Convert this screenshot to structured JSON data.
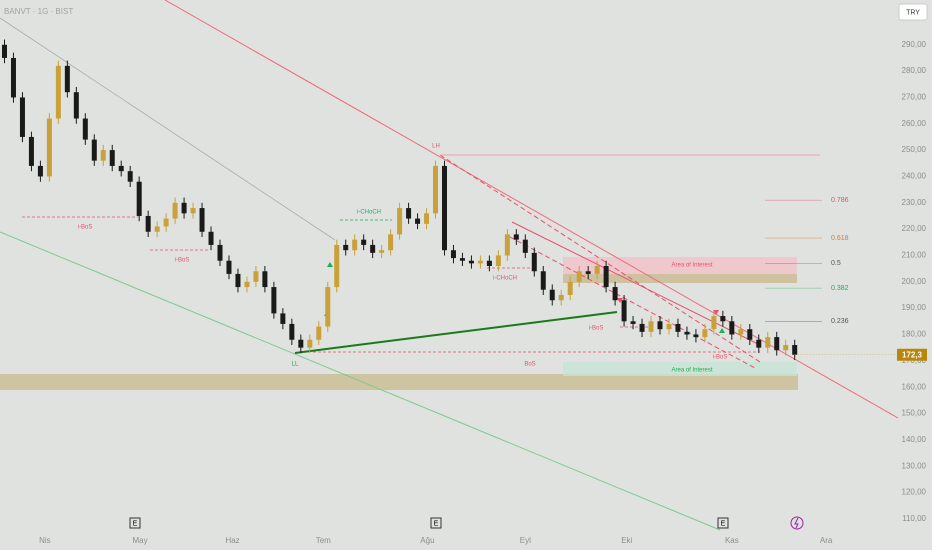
{
  "chart_data": {
    "type": "candlestick",
    "title": "BANVT · 1G · BIST",
    "currency": "TRY",
    "event_marker": "E",
    "last_price_label": "172,3",
    "up_color": "#c9a13b",
    "down_color": "#1a1a1a",
    "grid": false,
    "xlim": [
      -0.5,
      97.5
    ],
    "ylim": [
      105,
      307
    ],
    "xticks": [
      {
        "value": 4.5,
        "label": "Nis"
      },
      {
        "value": 15.1,
        "label": "May"
      },
      {
        "value": 25.4,
        "label": "Haz"
      },
      {
        "value": 35.5,
        "label": "Tem"
      },
      {
        "value": 47.1,
        "label": "Ağu"
      },
      {
        "value": 58,
        "label": "Eyl"
      },
      {
        "value": 69.3,
        "label": "Eki"
      },
      {
        "value": 81,
        "label": "Kas"
      },
      {
        "value": 91.5,
        "label": "Ara"
      }
    ],
    "yticks": [
      {
        "value": 290,
        "label": "290,00"
      },
      {
        "value": 280,
        "label": "280,00"
      },
      {
        "value": 270,
        "label": "270,00"
      },
      {
        "value": 260,
        "label": "260,00"
      },
      {
        "value": 250,
        "label": "250,00"
      },
      {
        "value": 240,
        "label": "240,00"
      },
      {
        "value": 230,
        "label": "230,00"
      },
      {
        "value": 220,
        "label": "220,00"
      },
      {
        "value": 210,
        "label": "210,00"
      },
      {
        "value": 200,
        "label": "200,00"
      },
      {
        "value": 190,
        "label": "190,00"
      },
      {
        "value": 180,
        "label": "180,00"
      },
      {
        "value": 170,
        "label": "170,00"
      },
      {
        "value": 160,
        "label": "160,00"
      },
      {
        "value": 150,
        "label": "150,00"
      },
      {
        "value": 140,
        "label": "140,00"
      },
      {
        "value": 130,
        "label": "130,00"
      },
      {
        "value": 120,
        "label": "120,00"
      },
      {
        "value": 110,
        "label": "110,00"
      }
    ],
    "fib_levels": [
      {
        "label": "0.786",
        "price": 231,
        "color": "#e8506a"
      },
      {
        "label": "0.618",
        "price": 216.6,
        "color": "#e07a20"
      },
      {
        "label": "0.5",
        "price": 207,
        "color": "#555555"
      },
      {
        "label": "0.382",
        "price": 197.6,
        "color": "#1fae5a"
      },
      {
        "label": "0.236",
        "price": 185,
        "color": "#555555"
      }
    ],
    "annotations": [
      "i-BoS",
      "i-BoS",
      "LL",
      "i-CHoCH",
      "LH",
      "i-CHoCH",
      "BoS",
      "i-BoS",
      "i-BoS",
      "Area of Interest",
      "Area of Interest"
    ],
    "open": [
      290,
      285,
      270,
      255,
      244,
      240,
      262,
      282,
      272,
      262,
      254,
      246,
      250,
      244,
      242,
      238,
      225,
      219,
      221,
      224,
      230,
      226,
      228,
      219,
      214,
      208,
      203,
      198,
      200,
      204,
      198,
      188,
      184,
      178,
      175,
      178,
      183,
      198,
      214,
      212,
      216,
      214,
      211,
      212,
      218,
      228,
      224,
      222,
      226,
      244,
      212,
      209,
      208,
      207,
      208,
      206,
      210,
      218,
      216,
      211,
      204,
      197,
      193,
      195,
      200,
      204,
      203,
      206,
      198,
      193,
      185,
      184,
      181,
      185,
      182,
      184,
      181,
      180,
      179,
      182,
      187,
      185,
      180,
      182,
      178,
      175,
      179,
      174,
      176
    ],
    "high": [
      292,
      287,
      272,
      257,
      246,
      264,
      284,
      284,
      274,
      264,
      256,
      252,
      252,
      246,
      244,
      240,
      227,
      223,
      226,
      232,
      232,
      230,
      230,
      221,
      216,
      210,
      205,
      202,
      206,
      206,
      200,
      190,
      186,
      180,
      180,
      185,
      200,
      216,
      216,
      218,
      218,
      216,
      214,
      220,
      230,
      230,
      226,
      228,
      246,
      246,
      214,
      211,
      210,
      210,
      210,
      212,
      220,
      220,
      218,
      213,
      206,
      199,
      197,
      202,
      206,
      206,
      208,
      208,
      200,
      195,
      187,
      186,
      187,
      187,
      186,
      186,
      183,
      182,
      184,
      189,
      189,
      187,
      184,
      184,
      180,
      181,
      181,
      178,
      178
    ],
    "low": [
      283,
      268,
      253,
      242,
      238,
      238,
      260,
      270,
      260,
      252,
      244,
      244,
      242,
      240,
      236,
      223,
      217,
      217,
      219,
      222,
      224,
      224,
      217,
      212,
      206,
      201,
      196,
      196,
      198,
      196,
      186,
      182,
      176,
      173,
      173,
      176,
      181,
      196,
      210,
      210,
      212,
      209,
      209,
      210,
      216,
      222,
      220,
      220,
      224,
      210,
      207,
      206,
      205,
      205,
      204,
      204,
      208,
      214,
      209,
      202,
      195,
      191,
      191,
      193,
      198,
      201,
      201,
      196,
      191,
      183,
      182,
      179,
      179,
      180,
      180,
      179,
      178,
      177,
      177,
      180,
      183,
      178,
      178,
      176,
      173,
      173,
      172,
      172,
      170.3
    ],
    "close": [
      285,
      270,
      255,
      244,
      240,
      262,
      282,
      272,
      262,
      254,
      246,
      250,
      244,
      242,
      238,
      225,
      219,
      221,
      224,
      230,
      226,
      228,
      219,
      214,
      208,
      203,
      198,
      200,
      204,
      198,
      188,
      184,
      178,
      175,
      178,
      183,
      198,
      214,
      212,
      216,
      214,
      211,
      212,
      218,
      228,
      224,
      222,
      226,
      244,
      212,
      209,
      208,
      207,
      208,
      206,
      210,
      218,
      216,
      211,
      204,
      197,
      193,
      195,
      200,
      204,
      203,
      206,
      198,
      193,
      185,
      184,
      181,
      185,
      182,
      184,
      181,
      180,
      179,
      182,
      187,
      185,
      180,
      182,
      178,
      175,
      179,
      174,
      176,
      172.3
    ]
  }
}
